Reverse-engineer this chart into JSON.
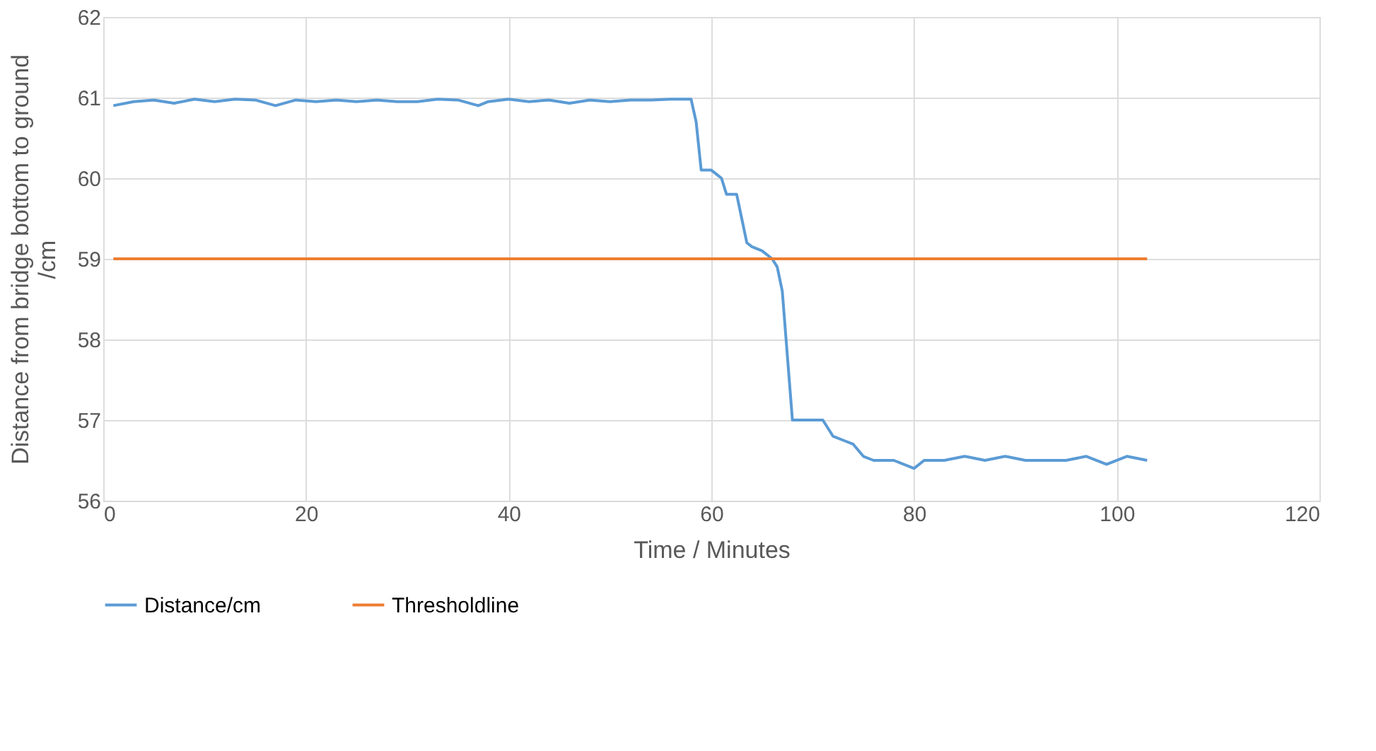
{
  "chart_data": {
    "type": "line",
    "xlabel": "Time / Minutes",
    "ylabel": "Distance from bridge bottom to ground /cm",
    "xlim": [
      0,
      120
    ],
    "xticks": [
      0,
      20,
      40,
      60,
      80,
      100,
      120
    ],
    "ylim": [
      56,
      62
    ],
    "yticks": [
      56,
      57,
      58,
      59,
      60,
      61,
      62
    ],
    "grid": true,
    "legend": "bottom",
    "line_style": "solid",
    "marker": "none",
    "series": [
      {
        "name": "Distance/cm",
        "color": "#5b9bd5",
        "x": [
          1,
          3,
          5,
          7,
          9,
          11,
          13,
          15,
          17,
          19,
          21,
          23,
          25,
          27,
          29,
          31,
          33,
          35,
          37,
          38,
          40,
          42,
          44,
          46,
          48,
          50,
          52,
          54,
          56,
          58,
          58.5,
          59,
          60,
          61,
          61.5,
          62.5,
          63,
          63.5,
          64,
          65,
          66,
          66.5,
          67,
          67.5,
          68,
          69,
          71,
          72,
          73,
          74,
          75,
          76,
          78,
          80,
          81,
          83,
          85,
          87,
          89,
          91,
          93,
          95,
          97,
          99,
          101,
          103
        ],
        "values": [
          60.9,
          60.95,
          60.97,
          60.93,
          60.98,
          60.95,
          60.98,
          60.97,
          60.9,
          60.97,
          60.95,
          60.97,
          60.95,
          60.97,
          60.95,
          60.95,
          60.98,
          60.97,
          60.9,
          60.95,
          60.98,
          60.95,
          60.97,
          60.93,
          60.97,
          60.95,
          60.97,
          60.97,
          60.98,
          60.98,
          60.7,
          60.1,
          60.1,
          60.0,
          59.8,
          59.8,
          59.5,
          59.2,
          59.15,
          59.1,
          59.0,
          58.9,
          58.6,
          57.8,
          57.0,
          57.0,
          57.0,
          56.8,
          56.75,
          56.7,
          56.55,
          56.5,
          56.5,
          56.4,
          56.5,
          56.5,
          56.55,
          56.5,
          56.55,
          56.5,
          56.5,
          56.5,
          56.55,
          56.45,
          56.55,
          56.5
        ]
      },
      {
        "name": "Thresholdline",
        "color": "#ed7d31",
        "x": [
          1,
          103
        ],
        "values": [
          59,
          59
        ]
      }
    ]
  }
}
